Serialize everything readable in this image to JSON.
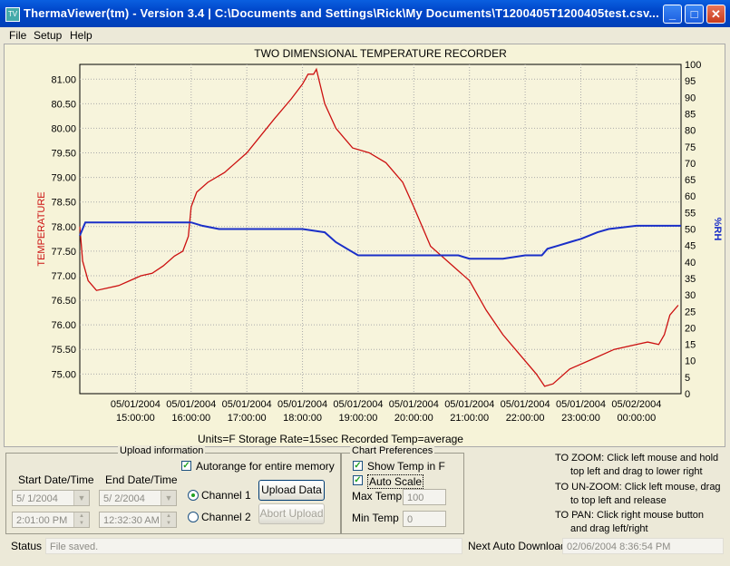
{
  "window": {
    "title": "ThermaViewer(tm) - Version 3.4  |  C:\\Documents and Settings\\Rick\\My Documents\\T1200405T1200405test.csv...",
    "minimize": "_",
    "maximize": "□",
    "close": "✕"
  },
  "menu": [
    "File",
    "Setup",
    "Help"
  ],
  "chart_data": {
    "type": "line",
    "title": "TWO DIMENSIONAL TEMPERATURE RECORDER",
    "ylabel": "TEMPERATURE",
    "y2label": "%RH",
    "subtitle": "Units=F   Storage Rate=15sec    Recorded Temp=average",
    "grid": true,
    "legend": "none",
    "ylim": [
      74.6,
      81.3
    ],
    "y2lim": [
      0,
      100
    ],
    "yticks": [
      "81.00",
      "80.50",
      "80.00",
      "79.50",
      "79.00",
      "78.50",
      "78.00",
      "77.50",
      "77.00",
      "76.50",
      "76.00",
      "75.50",
      "75.00"
    ],
    "y2ticks": [
      "100",
      "95",
      "90",
      "85",
      "80",
      "75",
      "70",
      "65",
      "60",
      "55",
      "50",
      "45",
      "40",
      "35",
      "30",
      "25",
      "20",
      "15",
      "10",
      "5",
      "0"
    ],
    "xlim": [
      14.0,
      24.8
    ],
    "xticks": [
      {
        "date": "05/01/2004",
        "time": "15:00:00",
        "h": 15
      },
      {
        "date": "05/01/2004",
        "time": "16:00:00",
        "h": 16
      },
      {
        "date": "05/01/2004",
        "time": "17:00:00",
        "h": 17
      },
      {
        "date": "05/01/2004",
        "time": "18:00:00",
        "h": 18
      },
      {
        "date": "05/01/2004",
        "time": "19:00:00",
        "h": 19
      },
      {
        "date": "05/01/2004",
        "time": "20:00:00",
        "h": 20
      },
      {
        "date": "05/01/2004",
        "time": "21:00:00",
        "h": 21
      },
      {
        "date": "05/01/2004",
        "time": "22:00:00",
        "h": 22
      },
      {
        "date": "05/01/2004",
        "time": "23:00:00",
        "h": 23
      },
      {
        "date": "05/02/2004",
        "time": "00:00:00",
        "h": 24
      }
    ],
    "series": [
      {
        "color": "#cc1010",
        "axis": "left",
        "x": [
          14.0,
          14.05,
          14.15,
          14.3,
          14.5,
          14.7,
          14.9,
          15.1,
          15.3,
          15.5,
          15.7,
          15.85,
          15.95,
          16.0,
          16.1,
          16.3,
          16.6,
          17.0,
          17.5,
          17.8,
          18.0,
          18.1,
          18.2,
          18.25,
          18.4,
          18.6,
          18.9,
          19.2,
          19.5,
          19.8,
          20.0,
          20.3,
          20.6,
          21.0,
          21.3,
          21.6,
          21.9,
          22.2,
          22.35,
          22.5,
          22.8,
          23.2,
          23.6,
          24.0,
          24.2,
          24.4,
          24.5,
          24.6,
          24.75
        ],
        "y": [
          78.0,
          77.3,
          76.9,
          76.7,
          76.75,
          76.8,
          76.9,
          77.0,
          77.05,
          77.2,
          77.4,
          77.5,
          77.8,
          78.4,
          78.7,
          78.9,
          79.1,
          79.5,
          80.2,
          80.6,
          80.9,
          81.1,
          81.1,
          81.2,
          80.5,
          80.0,
          79.6,
          79.5,
          79.3,
          78.9,
          78.4,
          77.6,
          77.3,
          76.9,
          76.3,
          75.8,
          75.4,
          75.0,
          74.75,
          74.8,
          75.1,
          75.3,
          75.5,
          75.6,
          75.65,
          75.6,
          75.8,
          76.2,
          76.4
        ]
      },
      {
        "color": "#1a2fc8",
        "axis": "right",
        "x": [
          14.0,
          14.1,
          14.3,
          15.0,
          15.6,
          16.0,
          16.2,
          16.5,
          17.0,
          17.5,
          18.0,
          18.4,
          18.6,
          18.8,
          19.0,
          19.5,
          20.0,
          20.3,
          20.8,
          21.0,
          21.3,
          21.6,
          22.0,
          22.3,
          22.4,
          22.6,
          22.8,
          23.0,
          23.3,
          23.5,
          24.0,
          24.8
        ],
        "y": [
          48,
          52,
          52,
          52,
          52,
          52,
          51,
          50,
          50,
          50,
          50,
          49,
          46,
          44,
          42,
          42,
          42,
          42,
          42,
          41,
          41,
          41,
          42,
          42,
          44,
          45,
          46,
          47,
          49,
          50,
          51,
          51
        ]
      }
    ]
  },
  "upload": {
    "legend": "Upload information",
    "autorange_label": "Autorange for entire memory",
    "autorange_checked": true,
    "start_label": "Start Date/Time",
    "end_label": "End Date/Time",
    "start_date": "5/ 1/2004",
    "start_time": "2:01:00 PM",
    "end_date": "5/ 2/2004",
    "end_time": "12:32:30 AM",
    "channel1": "Channel 1",
    "channel2": "Channel 2",
    "upload_button": "Upload Data",
    "abort_button": "Abort Upload"
  },
  "prefs": {
    "legend": "Chart Preferences",
    "show_temp_label": "Show Temp in F",
    "auto_scale_label": "Auto Scale",
    "max_label": "Max Temp",
    "max_value": "100",
    "min_label": "Min Temp",
    "min_value": "0"
  },
  "help": {
    "zoom1": "TO ZOOM: Click left mouse and hold",
    "zoom2": "top left and drag to lower right",
    "unzoom1": "TO UN-ZOOM: Click left mouse, drag",
    "unzoom2": "to top left and release",
    "pan1": "TO PAN: Click right mouse button",
    "pan2": "and drag left/right"
  },
  "status": {
    "label": "Status",
    "value": "File saved.",
    "next_label": "Next Auto Download:",
    "next_value": "02/06/2004 8:36:54 PM"
  }
}
